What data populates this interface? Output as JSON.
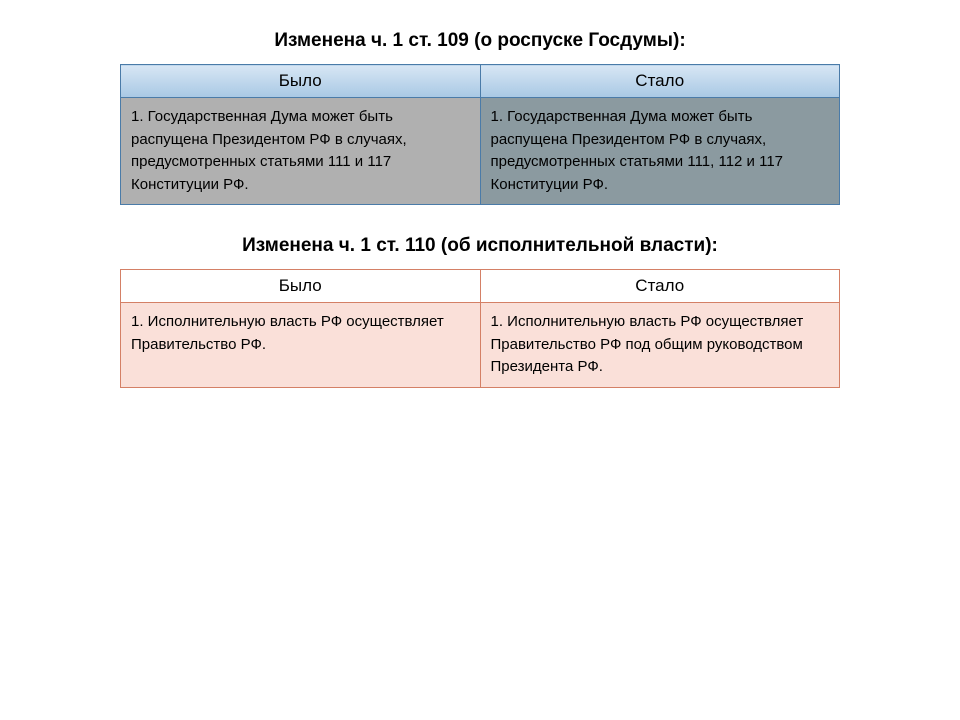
{
  "section1": {
    "title": "Изменена ч. 1 ст. 109 (о роспуске Госдумы):",
    "header_was": "Было",
    "header_now": "Стало",
    "body_was": "1. Государственная Дума может быть распущена Президентом РФ в случаях, предусмотренных статьями 111 и 117 Конституции РФ.",
    "body_now": "1. Государственная Дума может быть распущена Президентом РФ в случаях, предусмотренных статьями 111, 112 и 117 Конституции РФ."
  },
  "section2": {
    "title": "Изменена ч. 1 ст. 110 (об исполнительной власти):",
    "header_was": "Было",
    "header_now": "Стало",
    "body_was": "1. Исполнительную власть РФ осуществляет Правительство РФ.",
    "body_now": "1. Исполнительную власть РФ осуществляет Правительство РФ под общим руководством Президента РФ."
  }
}
